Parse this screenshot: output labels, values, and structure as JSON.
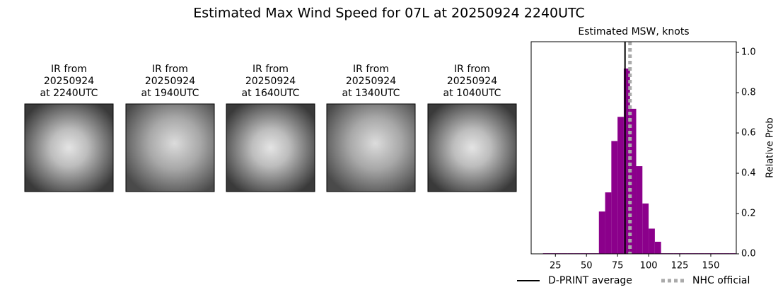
{
  "title": "Estimated Max Wind Speed for 07L at 20250924 2240UTC",
  "panels": [
    {
      "title_lines": [
        "IR from",
        "20250924",
        "at 2240UTC"
      ]
    },
    {
      "title_lines": [
        "IR from",
        "20250924",
        "at 1940UTC"
      ]
    },
    {
      "title_lines": [
        "IR from",
        "20250924",
        "at 1640UTC"
      ]
    },
    {
      "title_lines": [
        "IR from",
        "20250924",
        "at 1340UTC"
      ]
    },
    {
      "title_lines": [
        "IR from",
        "20250924",
        "at 1040UTC"
      ]
    }
  ],
  "chart_data": {
    "type": "histogram",
    "title": "Estimated MSW, knots",
    "ylabel": "Relative Prob",
    "color": "#8b008b",
    "bins": [
      15,
      20,
      25,
      30,
      35,
      40,
      45,
      50,
      55,
      60,
      65,
      70,
      75,
      80,
      85,
      90,
      95,
      100,
      105,
      110,
      115,
      120,
      125,
      130,
      135,
      140,
      145,
      150,
      155,
      160,
      165,
      170
    ],
    "values": [
      0.003,
      0.003,
      0.003,
      0.003,
      0.003,
      0.003,
      0.003,
      0.003,
      0.003,
      0.21,
      0.305,
      0.56,
      0.68,
      0.92,
      0.72,
      0.435,
      0.25,
      0.125,
      0.06,
      0.003,
      0.003,
      0.003,
      0.003,
      0.003,
      0.003,
      0.003,
      0.003,
      0.003,
      0.003,
      0.003,
      0.003
    ],
    "xlim": [
      5.5,
      170.5
    ],
    "xticks": [
      25,
      50,
      75,
      100,
      125,
      150
    ],
    "ylim": [
      0,
      1.053
    ],
    "yticks": [
      {
        "value": 0,
        "label": "0.0"
      },
      {
        "value": 0.2,
        "label": "0.2"
      },
      {
        "value": 0.4,
        "label": "0.4"
      },
      {
        "value": 0.6,
        "label": "0.6"
      },
      {
        "value": 0.8,
        "label": "0.8"
      },
      {
        "value": 1,
        "label": "1.0"
      }
    ],
    "y_axis_side": "right",
    "lines": [
      {
        "name": "D-PRINT average",
        "value": 81,
        "color": "#000000",
        "style": "solid"
      },
      {
        "name": "NHC official",
        "value": 85,
        "color": "#aaaaaa",
        "style": "dotted"
      }
    ]
  }
}
